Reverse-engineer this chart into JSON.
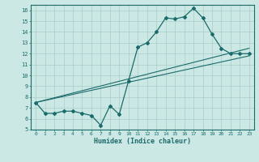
{
  "xlabel": "Humidex (Indice chaleur)",
  "xlim": [
    -0.5,
    23.5
  ],
  "ylim": [
    5,
    16.5
  ],
  "xticks": [
    0,
    1,
    2,
    3,
    4,
    5,
    6,
    7,
    8,
    9,
    10,
    11,
    12,
    13,
    14,
    15,
    16,
    17,
    18,
    19,
    20,
    21,
    22,
    23
  ],
  "yticks": [
    5,
    6,
    7,
    8,
    9,
    10,
    11,
    12,
    13,
    14,
    15,
    16
  ],
  "bg_color": "#cce8e4",
  "grid_color": "#a8ceca",
  "line_color": "#1a6b6b",
  "curve_x": [
    0,
    1,
    2,
    3,
    4,
    5,
    6,
    7,
    8,
    9,
    10,
    11,
    12,
    13,
    14,
    15,
    16,
    17,
    18,
    19,
    20,
    21,
    22,
    23
  ],
  "curve_y": [
    7.5,
    6.5,
    6.5,
    6.7,
    6.7,
    6.5,
    6.3,
    5.4,
    7.2,
    6.4,
    9.5,
    12.6,
    13.0,
    14.0,
    15.3,
    15.2,
    15.4,
    16.2,
    15.3,
    13.8,
    12.5,
    12.0,
    12.0,
    12.0
  ],
  "line2_x": [
    0,
    23
  ],
  "line2_y": [
    7.5,
    12.5
  ],
  "line3_x": [
    0,
    23
  ],
  "line3_y": [
    7.5,
    11.8
  ]
}
